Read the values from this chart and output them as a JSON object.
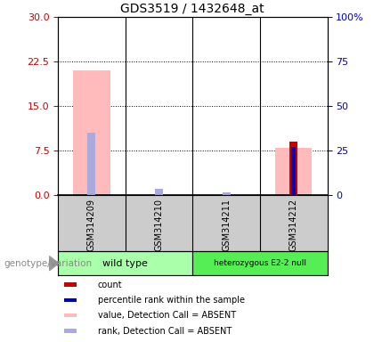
{
  "title": "GDS3519 / 1432648_at",
  "samples": [
    "GSM314209",
    "GSM314210",
    "GSM314211",
    "GSM314212"
  ],
  "groups": [
    {
      "name": "wild type",
      "samples": [
        0,
        1
      ],
      "color": "#aaffaa"
    },
    {
      "name": "heterozygous E2-2 null",
      "samples": [
        2,
        3
      ],
      "color": "#55ee55"
    }
  ],
  "count_values": [
    null,
    null,
    null,
    9.0
  ],
  "percentile_rank": [
    null,
    null,
    null,
    27.0
  ],
  "absent_value": [
    21.0,
    null,
    null,
    8.0
  ],
  "absent_rank": [
    35.0,
    3.5,
    1.5,
    null
  ],
  "ylim_left": [
    0,
    30
  ],
  "ylim_right": [
    0,
    100
  ],
  "yticks_left": [
    0,
    7.5,
    15,
    22.5,
    30
  ],
  "yticks_right": [
    0,
    25,
    50,
    75,
    100
  ],
  "color_count": "#cc0000",
  "color_percentile": "#0000bb",
  "color_absent_value": "#ffbbbb",
  "color_absent_rank": "#aaaadd",
  "legend_items": [
    {
      "color": "#cc0000",
      "label": "count"
    },
    {
      "color": "#0000bb",
      "label": "percentile rank within the sample"
    },
    {
      "color": "#ffbbbb",
      "label": "value, Detection Call = ABSENT"
    },
    {
      "color": "#aaaadd",
      "label": "rank, Detection Call = ABSENT"
    }
  ],
  "title_fontsize": 10,
  "genotype_label": "genotype/variation",
  "bg_color": "#cccccc",
  "plot_bg": "#ffffff"
}
